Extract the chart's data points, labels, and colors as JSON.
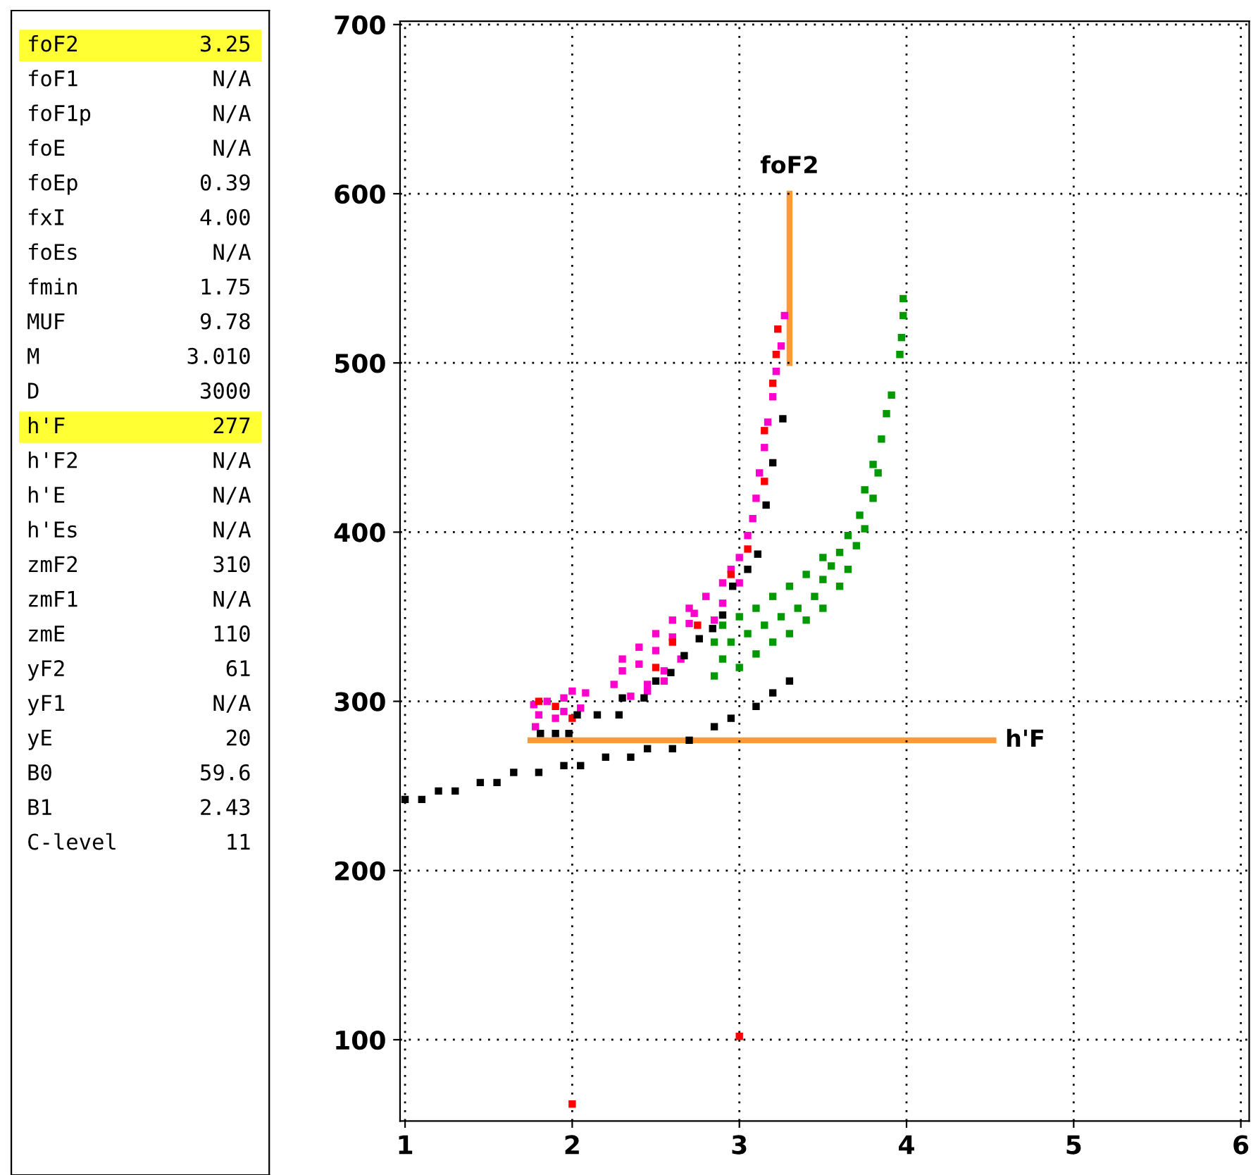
{
  "chart_data": [
    {
      "type": "other",
      "annotations": [
        "foF2 3.25",
        "foF1 N/A",
        "foF1p N/A",
        "foE N/A",
        "foEp 0.39",
        "fxI 4.00",
        "foEs N/A",
        "fmin 1.75",
        "MUF 9.78",
        "M 3.010",
        "D 3000",
        "h'F 277",
        "h'F2 N/A",
        "h'E N/A",
        "h'Es N/A",
        "zmF2 310",
        "zmF1 N/A",
        "zmE 110",
        "yF2 61",
        "yF1 N/A",
        "yE 20",
        "B0 59.6",
        "B1 2.43",
        "C-level 11"
      ],
      "colors": [
        "#ffff33",
        null,
        null,
        null,
        null,
        null,
        null,
        null,
        null,
        null,
        null,
        "#ffff33",
        null,
        null,
        null,
        null,
        null,
        null,
        null,
        null,
        null,
        null,
        null,
        null
      ]
    },
    {
      "type": "scatter",
      "xlim": [
        0.97,
        6.05
      ],
      "ylim": [
        52,
        702
      ],
      "xticks": [
        1,
        2,
        3,
        4,
        5,
        6
      ],
      "yticks": [
        100,
        200,
        300,
        400,
        500,
        600,
        700
      ],
      "grid": true,
      "legend": false,
      "marker": "square",
      "series": [
        {
          "color": "#ff00cc",
          "x": [
            1.77,
            1.85,
            1.95,
            2.0,
            1.78,
            1.9,
            2.05,
            2.08,
            1.8,
            1.95,
            2.25,
            2.3,
            2.4,
            2.5,
            2.6,
            2.7,
            2.73,
            2.3,
            2.4,
            2.5,
            2.6,
            2.7,
            2.8,
            2.9,
            2.95,
            3.0,
            3.05,
            3.08,
            3.1,
            3.12,
            3.15,
            3.17,
            3.2,
            3.22,
            3.25,
            3.27,
            2.45,
            2.55,
            2.65,
            2.85,
            2.9,
            3.0,
            2.35,
            2.45,
            2.55
          ],
          "values": [
            298,
            300,
            302,
            306,
            285,
            290,
            296,
            305,
            292,
            294,
            310,
            318,
            322,
            330,
            338,
            346,
            352,
            325,
            332,
            340,
            348,
            355,
            362,
            370,
            378,
            385,
            398,
            408,
            420,
            435,
            450,
            465,
            480,
            495,
            510,
            528,
            310,
            318,
            325,
            348,
            358,
            370,
            303,
            306,
            312
          ]
        },
        {
          "color": "#ff0000",
          "x": [
            1.8,
            1.9,
            2.0,
            2.5,
            2.6,
            2.75,
            2.95,
            3.05,
            3.15,
            3.15,
            3.2,
            3.22,
            3.23,
            3.0,
            2.0
          ],
          "values": [
            300,
            297,
            290,
            320,
            335,
            345,
            375,
            390,
            430,
            460,
            488,
            505,
            520,
            102,
            62
          ]
        },
        {
          "color": "#009900",
          "x": [
            2.85,
            2.9,
            2.95,
            2.85,
            3.0,
            3.05,
            3.1,
            3.15,
            3.2,
            3.25,
            3.3,
            3.35,
            3.4,
            3.45,
            3.5,
            3.5,
            3.55,
            3.6,
            3.6,
            3.65,
            3.65,
            3.7,
            3.72,
            3.75,
            3.75,
            3.8,
            3.8,
            3.83,
            3.85,
            3.88,
            3.91,
            3.96,
            3.97,
            3.98,
            3.98,
            2.9,
            3.0,
            3.1,
            3.2,
            3.3,
            3.4,
            3.5
          ],
          "values": [
            315,
            325,
            335,
            335,
            320,
            340,
            328,
            345,
            335,
            350,
            340,
            355,
            348,
            362,
            355,
            372,
            380,
            368,
            388,
            378,
            398,
            392,
            410,
            402,
            425,
            420,
            440,
            435,
            455,
            470,
            481,
            505,
            515,
            528,
            538,
            345,
            350,
            355,
            362,
            368,
            375,
            385
          ]
        },
        {
          "color": "#000000",
          "x": [
            1.0,
            1.1,
            1.2,
            1.3,
            1.45,
            1.55,
            1.65,
            1.8,
            1.95,
            2.05,
            2.2,
            2.35,
            2.45,
            2.6,
            2.7,
            2.85,
            2.95,
            3.1,
            3.2,
            3.3,
            1.81,
            1.9,
            1.98,
            2.03,
            2.15,
            2.28,
            2.3,
            2.43,
            2.5,
            2.59,
            2.67,
            2.76,
            2.84,
            2.9,
            2.96,
            3.05,
            3.11,
            3.16,
            3.2,
            3.26
          ],
          "values": [
            242,
            242,
            247,
            247,
            252,
            252,
            258,
            258,
            262,
            262,
            267,
            267,
            272,
            272,
            277,
            285,
            290,
            297,
            305,
            312,
            281,
            281,
            281,
            292,
            292,
            292,
            302,
            302,
            312,
            317,
            327,
            337,
            343,
            351,
            368,
            378,
            387,
            416,
            441,
            467
          ]
        },
        {
          "type": "line",
          "marker": "none",
          "color": "#ff9933",
          "x": [
            3.3,
            3.3
          ],
          "values": [
            500,
            600
          ]
        },
        {
          "type": "line",
          "marker": "none",
          "color": "#ff9933",
          "x": [
            1.75,
            4.52
          ],
          "values": [
            277,
            277
          ]
        }
      ],
      "annotations": [
        {
          "text": "foF2",
          "x": 3.3,
          "y": 600
        },
        {
          "text": "h'F",
          "x": 4.52,
          "y": 277
        }
      ]
    }
  ]
}
